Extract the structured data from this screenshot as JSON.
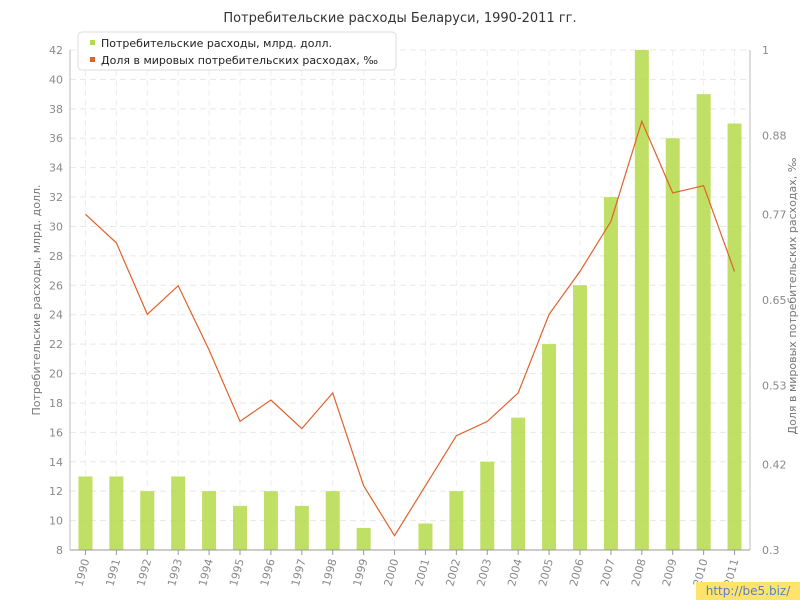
{
  "chart_data": {
    "type": "bar",
    "title": "Потребительские расходы Беларуси, 1990-2011 гг.",
    "categories": [
      "1990",
      "1991",
      "1992",
      "1993",
      "1994",
      "1995",
      "1996",
      "1997",
      "1998",
      "1999",
      "2000",
      "2001",
      "2002",
      "2003",
      "2004",
      "2005",
      "2006",
      "2007",
      "2008",
      "2009",
      "2010",
      "2011"
    ],
    "series": [
      {
        "name": "Потребительские расходы, млрд. долл.",
        "type": "bar",
        "axis": "left",
        "color": "#b5d94a",
        "values": [
          13,
          13,
          12,
          13,
          12,
          11,
          12,
          11,
          12,
          9.5,
          8,
          9.8,
          12,
          14,
          17,
          22,
          26,
          32,
          42,
          36,
          39,
          37
        ]
      },
      {
        "name": "Доля в мировых потребительских расходах, ‰",
        "type": "line",
        "axis": "right",
        "color": "#e0622c",
        "values": [
          0.77,
          0.73,
          0.63,
          0.67,
          0.58,
          0.48,
          0.51,
          0.47,
          0.52,
          0.39,
          0.32,
          0.39,
          0.46,
          0.48,
          0.52,
          0.63,
          0.69,
          0.76,
          0.9,
          0.8,
          0.81,
          0.69
        ]
      }
    ],
    "ylabel": "Потребительские расходы, млрд. долл.",
    "ylabel_right": "Доля в мировых потребительских расходах, ‰",
    "ylim": [
      8,
      42
    ],
    "yticks": [
      "8",
      "10",
      "12",
      "14",
      "16",
      "18",
      "20",
      "22",
      "24",
      "26",
      "28",
      "30",
      "32",
      "34",
      "36",
      "38",
      "40",
      "42"
    ],
    "ylim_right": [
      0.3,
      1
    ],
    "yticks_right": [
      "0.3",
      "0.42",
      "0.53",
      "0.65",
      "0.77",
      "0.88",
      "1"
    ],
    "grid": true,
    "legend_position": "top-left"
  },
  "watermark": "http://be5.biz/"
}
